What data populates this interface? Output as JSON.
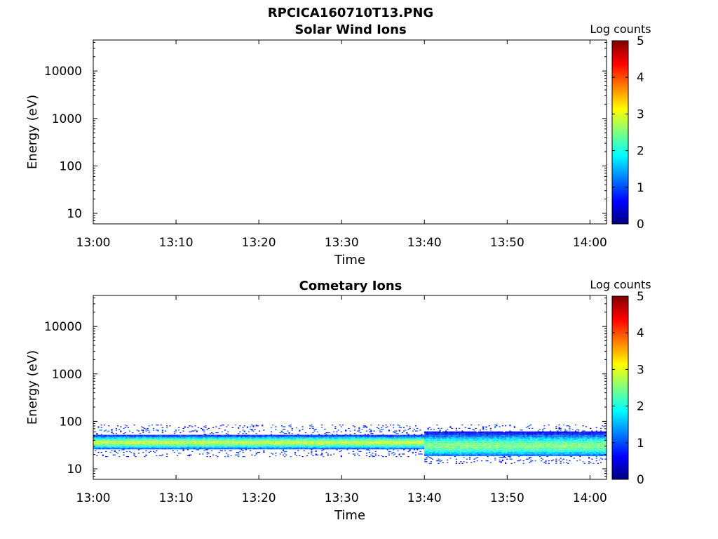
{
  "figure_title": "RPCICA160710T13.PNG",
  "colorbar_ticks": [
    "0",
    "1",
    "2",
    "3",
    "4",
    "5"
  ],
  "colors": {
    "colormap": [
      "#00007f",
      "#0000ff",
      "#007fff",
      "#00ffff",
      "#7fff7f",
      "#ffff00",
      "#ff7f00",
      "#ff0000",
      "#7f0000"
    ],
    "axis": "#000000",
    "text": "#111111"
  },
  "chart_data": [
    {
      "type": "heatmap",
      "title": "Solar Wind Ions",
      "xlabel": "Time",
      "ylabel": "Energy (eV)",
      "colorbar_label": "Log counts",
      "yscale": "log",
      "xlim": [
        "13:00",
        "14:02"
      ],
      "ylim": [
        6,
        45000
      ],
      "clim": [
        0,
        5
      ],
      "x_ticks": [
        "13:00",
        "13:10",
        "13:20",
        "13:30",
        "13:40",
        "13:50",
        "14:00"
      ],
      "y_ticks": [
        10,
        100,
        1000,
        10000
      ],
      "y_tick_labels": [
        "10",
        "100",
        "1000",
        "10000"
      ],
      "data": []
    },
    {
      "type": "heatmap",
      "title": "Cometary Ions",
      "xlabel": "Time",
      "ylabel": "Energy (eV)",
      "colorbar_label": "Log counts",
      "yscale": "log",
      "xlim": [
        "13:00",
        "14:02"
      ],
      "ylim": [
        6,
        45000
      ],
      "clim": [
        0,
        5
      ],
      "x_ticks": [
        "13:00",
        "13:10",
        "13:20",
        "13:30",
        "13:40",
        "13:50",
        "14:00"
      ],
      "y_ticks": [
        10,
        100,
        1000,
        10000
      ],
      "y_tick_labels": [
        "10",
        "100",
        "1000",
        "10000"
      ],
      "data": [
        {
          "time_range": [
            "13:00",
            "13:40"
          ],
          "energy_peak": 35,
          "energy_range": [
            25,
            50
          ],
          "peak_log_counts": 2.8,
          "sparse_upper_edge": 80
        },
        {
          "time_range": [
            "13:40",
            "14:02"
          ],
          "energy_peak": 30,
          "energy_range": [
            18,
            60
          ],
          "peak_log_counts": 2.5,
          "sparse_upper_edge": 80
        }
      ]
    }
  ]
}
